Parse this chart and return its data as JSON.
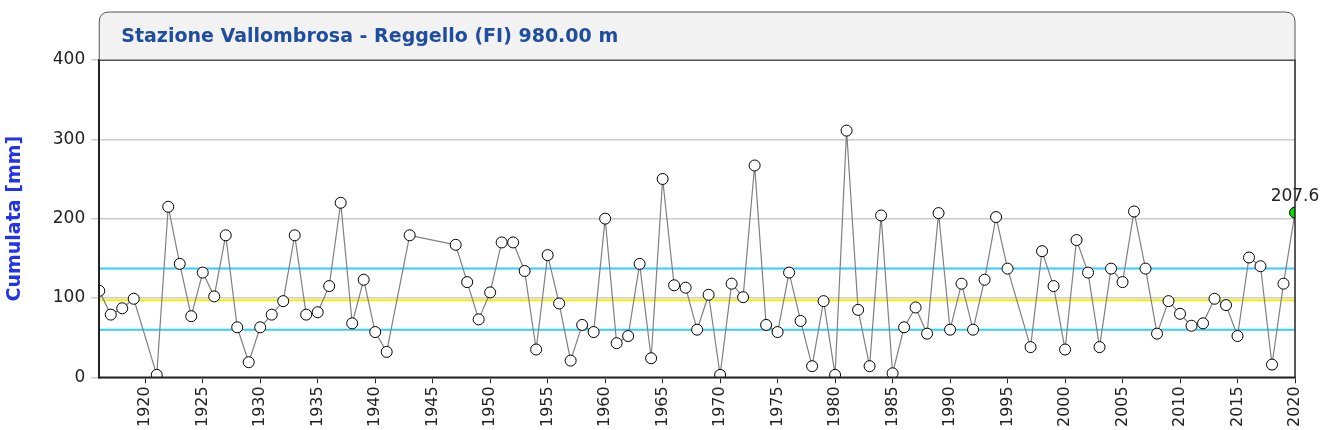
{
  "chart_data": {
    "type": "line",
    "title": "Stazione Vallombrosa - Reggello (FI) 980.00 m",
    "ylabel": "Cumulata [mm]",
    "x": [
      1916,
      1917,
      1918,
      1919,
      1921,
      1922,
      1923,
      1924,
      1925,
      1926,
      1927,
      1928,
      1929,
      1930,
      1931,
      1932,
      1933,
      1934,
      1935,
      1936,
      1937,
      1938,
      1939,
      1940,
      1941,
      1943,
      1947,
      1948,
      1949,
      1950,
      1951,
      1952,
      1953,
      1954,
      1955,
      1956,
      1957,
      1958,
      1959,
      1960,
      1961,
      1962,
      1963,
      1964,
      1965,
      1966,
      1967,
      1968,
      1969,
      1970,
      1971,
      1972,
      1973,
      1974,
      1975,
      1976,
      1977,
      1978,
      1979,
      1980,
      1981,
      1982,
      1983,
      1984,
      1985,
      1986,
      1987,
      1988,
      1989,
      1990,
      1991,
      1992,
      1993,
      1994,
      1995,
      1997,
      1998,
      1999,
      2000,
      2001,
      2002,
      2003,
      2004,
      2005,
      2006,
      2007,
      2008,
      2009,
      2010,
      2011,
      2012,
      2013,
      2014,
      2015,
      2016,
      2017,
      2018,
      2019,
      2020
    ],
    "series": [
      {
        "color": "#808080",
        "values": [
          109,
          79,
          87,
          99,
          3,
          215,
          143,
          77,
          132,
          102,
          179,
          63,
          19,
          63,
          79,
          96,
          179,
          79,
          82,
          115,
          220,
          68,
          123,
          57,
          32,
          179,
          167,
          120,
          73,
          107,
          170,
          170,
          134,
          35,
          154,
          93,
          21,
          66,
          57,
          200,
          43,
          52,
          143,
          24,
          250,
          116,
          113,
          60,
          104,
          3,
          118,
          101,
          267,
          66,
          57,
          132,
          71,
          14,
          96,
          3,
          311,
          85,
          14,
          204,
          5,
          63,
          88,
          55,
          207,
          60,
          118,
          60,
          123,
          202,
          137,
          38,
          159,
          115,
          35,
          173,
          132,
          38,
          137,
          120,
          209,
          137,
          55,
          96,
          80,
          65,
          68,
          99,
          91,
          52,
          151,
          140,
          16,
          118,
          207.6
        ],
        "colors": [
          "#ffffff",
          "#ffffff",
          "#ffffff",
          "#ffffff",
          "#ffffff",
          "#ffffff",
          "#ffffff",
          "#ffffff",
          "#ffffff",
          "#ffffff",
          "#ffffff",
          "#ffffff",
          "#ffffff",
          "#ffffff",
          "#ffffff",
          "#ffffff",
          "#ffffff",
          "#ffffff",
          "#ffffff",
          "#ffffff",
          "#ffffff",
          "#ffffff",
          "#ffffff",
          "#ffffff",
          "#ffffff",
          "#ffffff",
          "#ffffff",
          "#ffffff",
          "#ffffff",
          "#ffffff",
          "#ffffff",
          "#ffffff",
          "#ffffff",
          "#ffffff",
          "#ffffff",
          "#ffffff",
          "#ffffff",
          "#ffffff",
          "#ffffff",
          "#ffffff",
          "#ffffff",
          "#ffffff",
          "#ffffff",
          "#ffffff",
          "#ffffff",
          "#ffffff",
          "#ffffff",
          "#ffffff",
          "#ffffff",
          "#ffffff",
          "#ffffff",
          "#ffffff",
          "#ffffff",
          "#ffffff",
          "#ffffff",
          "#ffffff",
          "#ffffff",
          "#ffffff",
          "#ffffff",
          "#ffffff",
          "#ffffff",
          "#ffffff",
          "#ffffff",
          "#ffffff",
          "#ffffff",
          "#ffffff",
          "#ffffff",
          "#ffffff",
          "#ffffff",
          "#ffffff",
          "#ffffff",
          "#ffffff",
          "#ffffff",
          "#ffffff",
          "#ffffff",
          "#ffffff",
          "#ffffff",
          "#ffffff",
          "#ffffff",
          "#ffffff",
          "#ffffff",
          "#ffffff",
          "#ffffff",
          "#ffffff",
          "#ffffff",
          "#ffffff",
          "#ffffff",
          "#ffffff",
          "#ffffff",
          "#ffffff",
          "#ffffff",
          "#ffffff",
          "#ffffff",
          "#ffffff",
          "#ffffff",
          "#ffffff",
          "#ffffff",
          "#ffffff",
          "#00dd00"
        ],
        "value_labels": [
          null,
          null,
          null,
          null,
          null,
          null,
          null,
          null,
          null,
          null,
          null,
          null,
          null,
          null,
          null,
          null,
          null,
          null,
          null,
          null,
          null,
          null,
          null,
          null,
          null,
          null,
          null,
          null,
          null,
          null,
          null,
          null,
          null,
          null,
          null,
          null,
          null,
          null,
          null,
          null,
          null,
          null,
          null,
          null,
          null,
          null,
          null,
          null,
          null,
          null,
          null,
          null,
          null,
          null,
          null,
          null,
          null,
          null,
          null,
          null,
          null,
          null,
          null,
          null,
          null,
          null,
          null,
          null,
          null,
          null,
          null,
          null,
          null,
          null,
          null,
          null,
          null,
          null,
          null,
          null,
          null,
          null,
          null,
          null,
          null,
          null,
          null,
          null,
          null,
          null,
          null,
          null,
          null,
          null,
          null,
          null,
          null,
          null,
          "207.6"
        ]
      }
    ],
    "xlim": [
      1916,
      2020
    ],
    "xticks": [
      1920,
      1925,
      1930,
      1935,
      1940,
      1945,
      1950,
      1955,
      1960,
      1965,
      1970,
      1975,
      1980,
      1985,
      1990,
      1995,
      2000,
      2005,
      2010,
      2015,
      2020
    ],
    "ylim": [
      0,
      400
    ],
    "yticks": [
      0,
      100,
      200,
      300,
      400
    ],
    "ref_lines": [
      {
        "axis": "y",
        "value": 97,
        "color": "#f0f000"
      },
      {
        "axis": "y",
        "value": 137,
        "color": "#33ccff"
      },
      {
        "axis": "y",
        "value": 60,
        "color": "#33ccff"
      }
    ],
    "grid": "y",
    "legend": false,
    "marker": "circle",
    "line_style": "solid"
  }
}
